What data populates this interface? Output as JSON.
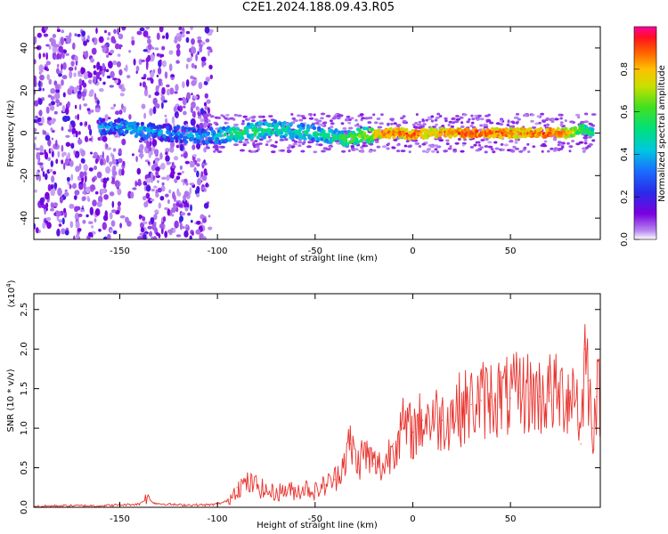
{
  "title": "C2E1.2024.188.09.43.R05",
  "colors": {
    "snr_line": "#e8312c",
    "axis": "#000000"
  },
  "chart_data": [
    {
      "type": "heatmap",
      "xlabel": "Height of straight line (km)",
      "ylabel": "Frequency (Hz)",
      "xlim": [
        -194,
        96
      ],
      "ylim": [
        -50,
        50
      ],
      "xticks": [
        -150,
        -100,
        -50,
        0,
        50
      ],
      "yticks": [
        -40,
        -20,
        0,
        20,
        40
      ],
      "colorbar": {
        "label": "Normalized spectral amplitude",
        "range": [
          0.0,
          1.0
        ],
        "ticks": [
          "0.0",
          "0.2",
          "0.4",
          "0.6",
          "0.8"
        ]
      },
      "ridge": [
        {
          "x": -160,
          "y": 3,
          "amp": 0.4
        },
        {
          "x": -150,
          "y": 3,
          "amp": 0.35
        },
        {
          "x": -145,
          "y": 2,
          "amp": 0.45
        },
        {
          "x": -135,
          "y": 1,
          "amp": 0.4
        },
        {
          "x": -125,
          "y": 0,
          "amp": 0.35
        },
        {
          "x": -115,
          "y": -1,
          "amp": 0.4
        },
        {
          "x": -110,
          "y": -2,
          "amp": 0.4
        },
        {
          "x": -100,
          "y": -1,
          "amp": 0.45
        },
        {
          "x": -90,
          "y": 0,
          "amp": 0.55
        },
        {
          "x": -80,
          "y": 1,
          "amp": 0.55
        },
        {
          "x": -70,
          "y": 2,
          "amp": 0.5
        },
        {
          "x": -60,
          "y": 1,
          "amp": 0.5
        },
        {
          "x": -50,
          "y": 0,
          "amp": 0.5
        },
        {
          "x": -40,
          "y": -2,
          "amp": 0.55
        },
        {
          "x": -35,
          "y": -3,
          "amp": 0.6
        },
        {
          "x": -25,
          "y": -1,
          "amp": 0.65
        },
        {
          "x": -15,
          "y": 0,
          "amp": 0.85
        },
        {
          "x": -5,
          "y": 0,
          "amp": 0.85
        },
        {
          "x": 0,
          "y": -1,
          "amp": 0.9
        },
        {
          "x": 10,
          "y": 0,
          "amp": 0.8
        },
        {
          "x": 20,
          "y": 0,
          "amp": 0.85
        },
        {
          "x": 30,
          "y": 0,
          "amp": 0.9
        },
        {
          "x": 40,
          "y": 0,
          "amp": 0.9
        },
        {
          "x": 50,
          "y": 0,
          "amp": 0.85
        },
        {
          "x": 60,
          "y": 0,
          "amp": 0.85
        },
        {
          "x": 70,
          "y": 0,
          "amp": 0.9
        },
        {
          "x": 80,
          "y": 0,
          "amp": 0.8
        },
        {
          "x": 86,
          "y": 2,
          "amp": 0.6
        },
        {
          "x": 92,
          "y": 0,
          "amp": 0.55
        }
      ]
    },
    {
      "type": "line",
      "xlabel": "Height of straight line (km)",
      "ylabel": "SNR (10 * v/v)",
      "yscale_label": "(x10",
      "yscale_exp": "4",
      "xlim": [
        -194,
        96
      ],
      "ylim": [
        0.0,
        2.7
      ],
      "xticks": [
        -150,
        -100,
        -50,
        0,
        50
      ],
      "yticks": [
        "0.0",
        "0.5",
        "1.0",
        "1.5",
        "2.0",
        "2.5"
      ],
      "series": [
        {
          "x": [
            -194,
            -180,
            -160,
            -140,
            -136,
            -132,
            -120,
            -105,
            -100,
            -95,
            -90,
            -85,
            -80,
            -75,
            -70,
            -65,
            -60,
            -55,
            -50,
            -45,
            -40,
            -35,
            -32,
            -28,
            -25,
            -20,
            -15,
            -10,
            -5,
            0,
            5,
            10,
            15,
            20,
            25,
            30,
            35,
            40,
            45,
            50,
            55,
            60,
            65,
            70,
            75,
            80,
            84,
            86,
            88,
            90,
            92,
            94,
            96
          ],
          "y": [
            0.01,
            0.02,
            0.02,
            0.04,
            0.12,
            0.05,
            0.03,
            0.03,
            0.04,
            0.08,
            0.25,
            0.3,
            0.28,
            0.2,
            0.18,
            0.22,
            0.2,
            0.25,
            0.2,
            0.28,
            0.35,
            0.6,
            0.8,
            0.55,
            0.7,
            0.55,
            0.5,
            0.8,
            1.0,
            0.95,
            1.1,
            1.15,
            1.1,
            1.2,
            1.25,
            1.3,
            1.35,
            1.4,
            1.4,
            1.38,
            1.45,
            1.45,
            1.4,
            1.45,
            1.4,
            1.45,
            1.5,
            0.8,
            2.0,
            1.6,
            1.0,
            1.4,
            1.4
          ]
        }
      ]
    }
  ]
}
